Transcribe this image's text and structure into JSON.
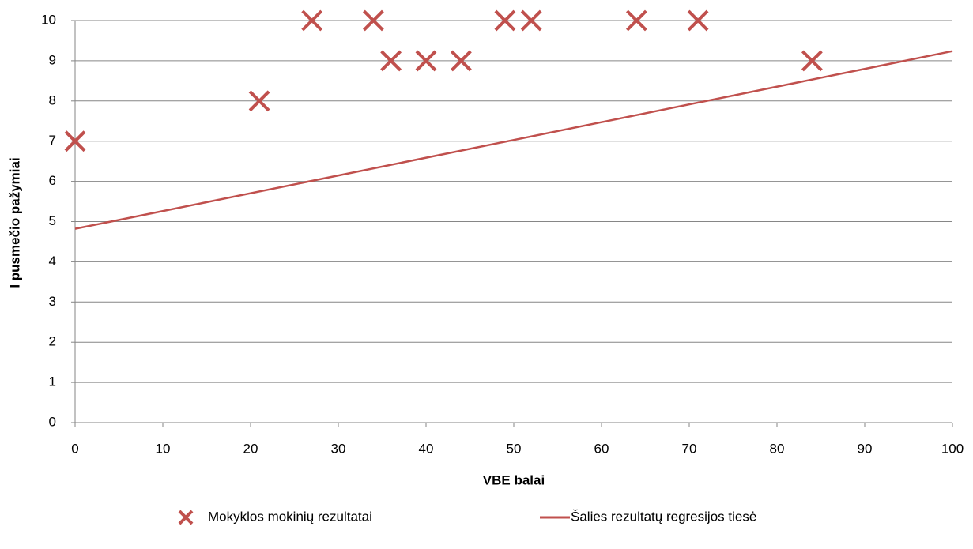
{
  "chart_data": {
    "type": "scatter",
    "x_label": "VBE balai",
    "y_label": "I pusmečio pažymiai",
    "xlim": [
      0,
      100
    ],
    "ylim": [
      0,
      10
    ],
    "xticks": [
      0,
      10,
      20,
      30,
      40,
      50,
      60,
      70,
      80,
      90,
      100
    ],
    "yticks": [
      0,
      1,
      2,
      3,
      4,
      5,
      6,
      7,
      8,
      9,
      10
    ],
    "grid": true,
    "legend": "bottom",
    "series": [
      {
        "name": "Mokyklos mokinių rezultatai",
        "type": "scatter",
        "color": "#c0504d",
        "x": [
          0,
          21,
          27,
          34,
          36,
          40,
          44,
          49,
          52,
          64,
          71,
          84
        ],
        "values": [
          7,
          8,
          10,
          10,
          9,
          9,
          9,
          10,
          10,
          10,
          10,
          9
        ]
      },
      {
        "name": "Šalies rezultatų regresijos tiesė",
        "type": "line",
        "color": "#c0504d",
        "x": [
          0,
          100
        ],
        "values": [
          4.82,
          9.24
        ]
      }
    ]
  }
}
